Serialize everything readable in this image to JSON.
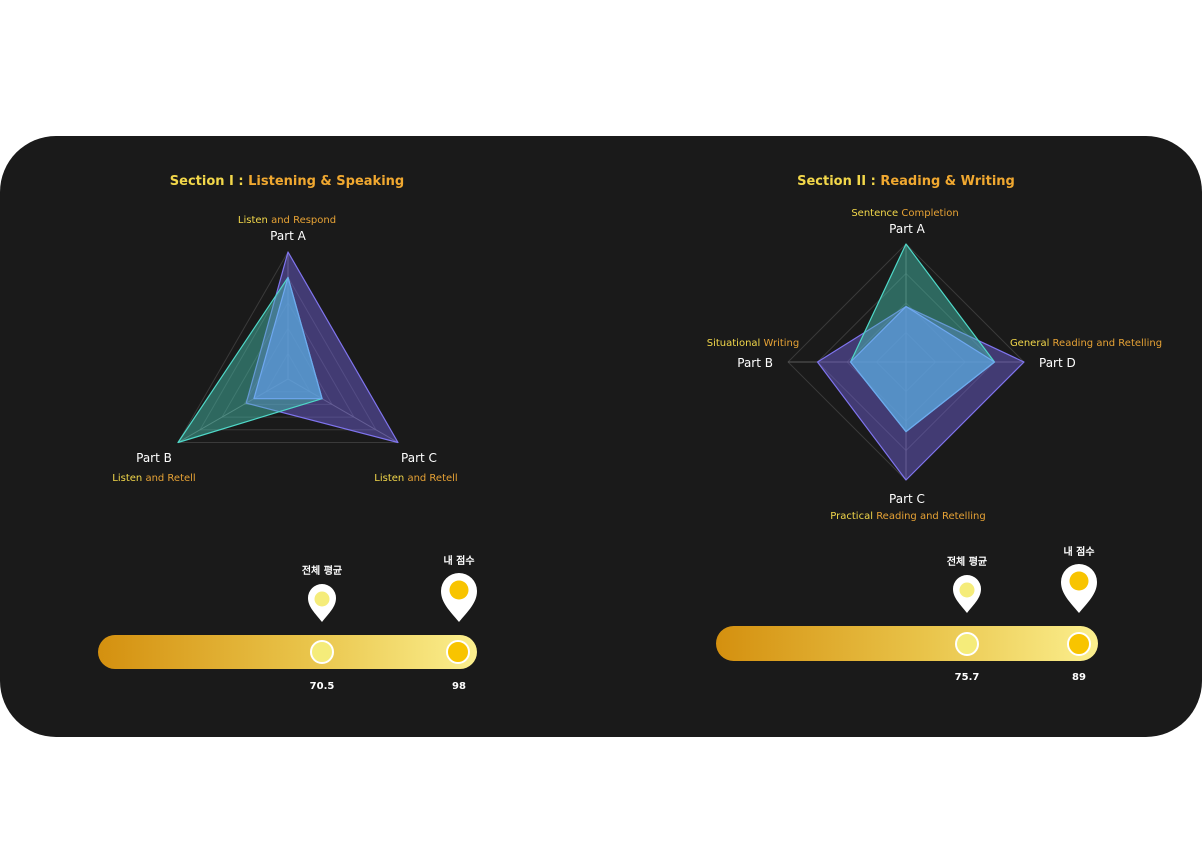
{
  "colors": {
    "background": "#1a1a1a",
    "gold_light": "#f2d74a",
    "gold_dark": "#d89a1c",
    "purple": "#7a6ee6",
    "teal": "#4fd8c8",
    "bar_start": "#d4900f",
    "bar_end": "#fbef8e",
    "avg_dot": "#f5ec7a",
    "my_dot": "#f8c400"
  },
  "chart_data": [
    {
      "type": "radar",
      "title_prefix": "Section I : ",
      "title_main": "Listening & Speaking",
      "axes": [
        {
          "name": "Part A",
          "sub_a": "Listen",
          "sub_b": "and Respond"
        },
        {
          "name": "Part B",
          "sub_a": "Listen",
          "sub_b": "and Retell"
        },
        {
          "name": "Part C",
          "sub_a": "Listen",
          "sub_b": "and Retell"
        }
      ],
      "range": [
        0,
        100
      ],
      "series": [
        {
          "values": [
            100,
            100,
            38
          ]
        },
        {
          "values": [
            80,
            31,
            100
          ]
        },
        {
          "values": [
            80,
            31,
            31
          ]
        }
      ],
      "score_bar": {
        "average_label": "전체 평균",
        "average_value": "70.5",
        "average_fraction": 0.705,
        "my_label": "내 점수",
        "my_value": "98",
        "my_fraction": 0.98
      }
    },
    {
      "type": "radar",
      "title_prefix": "Section II : ",
      "title_main": "Reading & Writing",
      "axes": [
        {
          "name": "Part A",
          "sub_a": "Sentence",
          "sub_b": "Completion"
        },
        {
          "name": "Part D",
          "sub_a": "General",
          "sub_b": "Reading and Retelling"
        },
        {
          "name": "Part C",
          "sub_a": "Practical",
          "sub_b": "Reading and Retelling"
        },
        {
          "name": "Part B",
          "sub_a": "Situational",
          "sub_b": "Writing"
        }
      ],
      "range": [
        0,
        100
      ],
      "series": [
        {
          "values": [
            47,
            100,
            100,
            75
          ]
        },
        {
          "values": [
            100,
            75,
            59,
            47
          ]
        },
        {
          "values": [
            47,
            75,
            59,
            47
          ]
        }
      ],
      "score_bar": {
        "average_label": "전체 평균",
        "average_value": "75.7",
        "average_fraction": 0.757,
        "my_label": "내 점수",
        "my_value": "89",
        "my_fraction": 0.89
      }
    }
  ]
}
